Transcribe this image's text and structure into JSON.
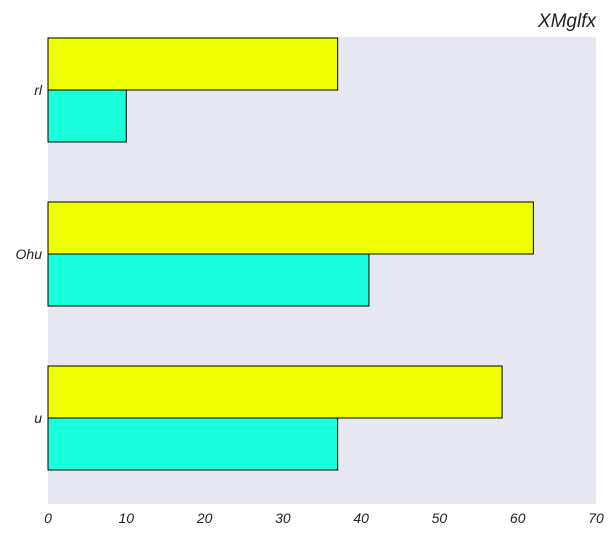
{
  "chart_data": {
    "type": "bar",
    "orientation": "horizontal",
    "title": "XMglfx",
    "xlabel": "",
    "ylabel": "",
    "categories": [
      "rl",
      "Ohu",
      "u"
    ],
    "series": [
      {
        "values": [
          37,
          62,
          58
        ],
        "color": "#eeff00"
      },
      {
        "values": [
          10,
          41,
          37
        ],
        "color": "#1affdb"
      }
    ],
    "xlim": [
      0,
      70
    ],
    "xticks": [
      "0",
      "10",
      "20",
      "30",
      "40",
      "50",
      "60",
      "70"
    ],
    "grid": false,
    "legend": "none",
    "plot_background": "#e8e8f2"
  }
}
